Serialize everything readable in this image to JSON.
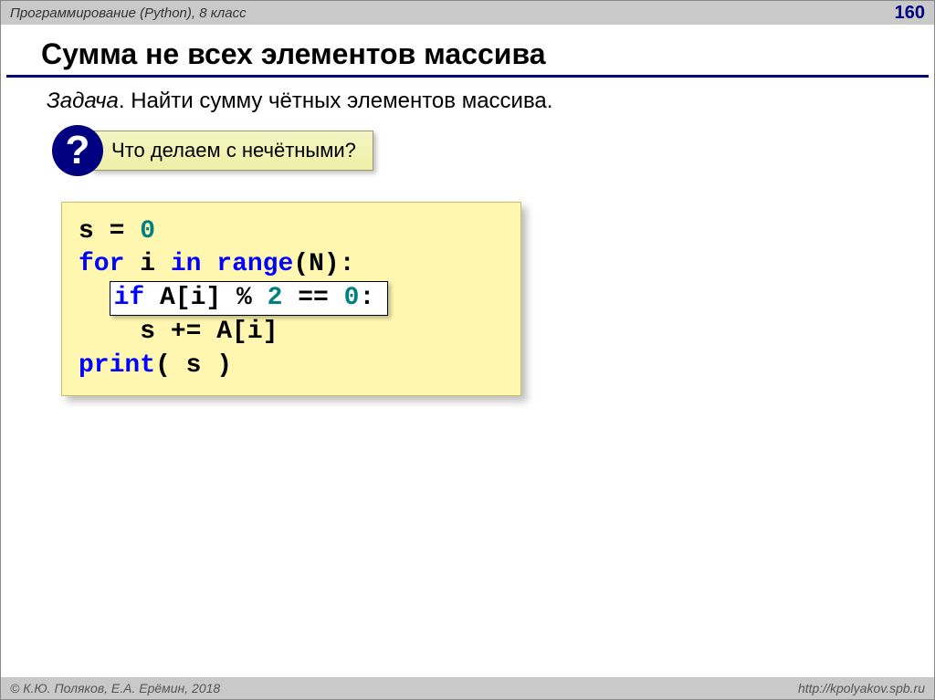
{
  "header": {
    "course": "Программирование (Python), 8 класс",
    "page_number": "160"
  },
  "title": "Сумма не всех элементов массива",
  "task": {
    "label": "Задача",
    "text": "Найти сумму чётных элементов массива."
  },
  "question": {
    "badge": "?",
    "text": "Что делаем с нечётными?"
  },
  "code": {
    "font_family": "Courier New",
    "font_size_pt": 21,
    "background": "#fff7b0",
    "keyword_color": "#0000ff",
    "number_color": "#008080",
    "text_color": "#000000",
    "highlight_bg": "#ffffff",
    "highlight_border": "#000000",
    "lines": [
      {
        "indent": 0,
        "highlighted": false,
        "tokens": [
          {
            "t": "s ",
            "c": "txt"
          },
          {
            "t": "=",
            "c": "txt"
          },
          {
            "t": " ",
            "c": "txt"
          },
          {
            "t": "0",
            "c": "num"
          }
        ]
      },
      {
        "indent": 0,
        "highlighted": false,
        "tokens": [
          {
            "t": "for",
            "c": "kw"
          },
          {
            "t": " i ",
            "c": "txt"
          },
          {
            "t": "in",
            "c": "kw"
          },
          {
            "t": " ",
            "c": "txt"
          },
          {
            "t": "range",
            "c": "func"
          },
          {
            "t": "(N):",
            "c": "txt"
          }
        ]
      },
      {
        "indent": 2,
        "highlighted": true,
        "tokens": [
          {
            "t": "if",
            "c": "kw"
          },
          {
            "t": " A[i] % ",
            "c": "txt"
          },
          {
            "t": "2",
            "c": "num"
          },
          {
            "t": " == ",
            "c": "txt"
          },
          {
            "t": "0",
            "c": "num"
          },
          {
            "t": ":",
            "c": "txt"
          }
        ]
      },
      {
        "indent": 4,
        "highlighted": false,
        "tokens": [
          {
            "t": "s += A[i]",
            "c": "txt"
          }
        ]
      },
      {
        "indent": 0,
        "highlighted": false,
        "tokens": [
          {
            "t": "print",
            "c": "func"
          },
          {
            "t": "( s )",
            "c": "txt"
          }
        ]
      }
    ]
  },
  "footer": {
    "copyright": "© К.Ю. Поляков, Е.А. Ерёмин, 2018",
    "url": "http://kpolyakov.spb.ru"
  },
  "colors": {
    "header_bg": "#c9c9c9",
    "title_underline": "#000080",
    "badge_bg": "#000080",
    "question_box_bg_top": "#f5f5c4",
    "question_box_bg_bottom": "#efefa8",
    "page_bg": "#ffffff",
    "footer_text": "#555555"
  }
}
